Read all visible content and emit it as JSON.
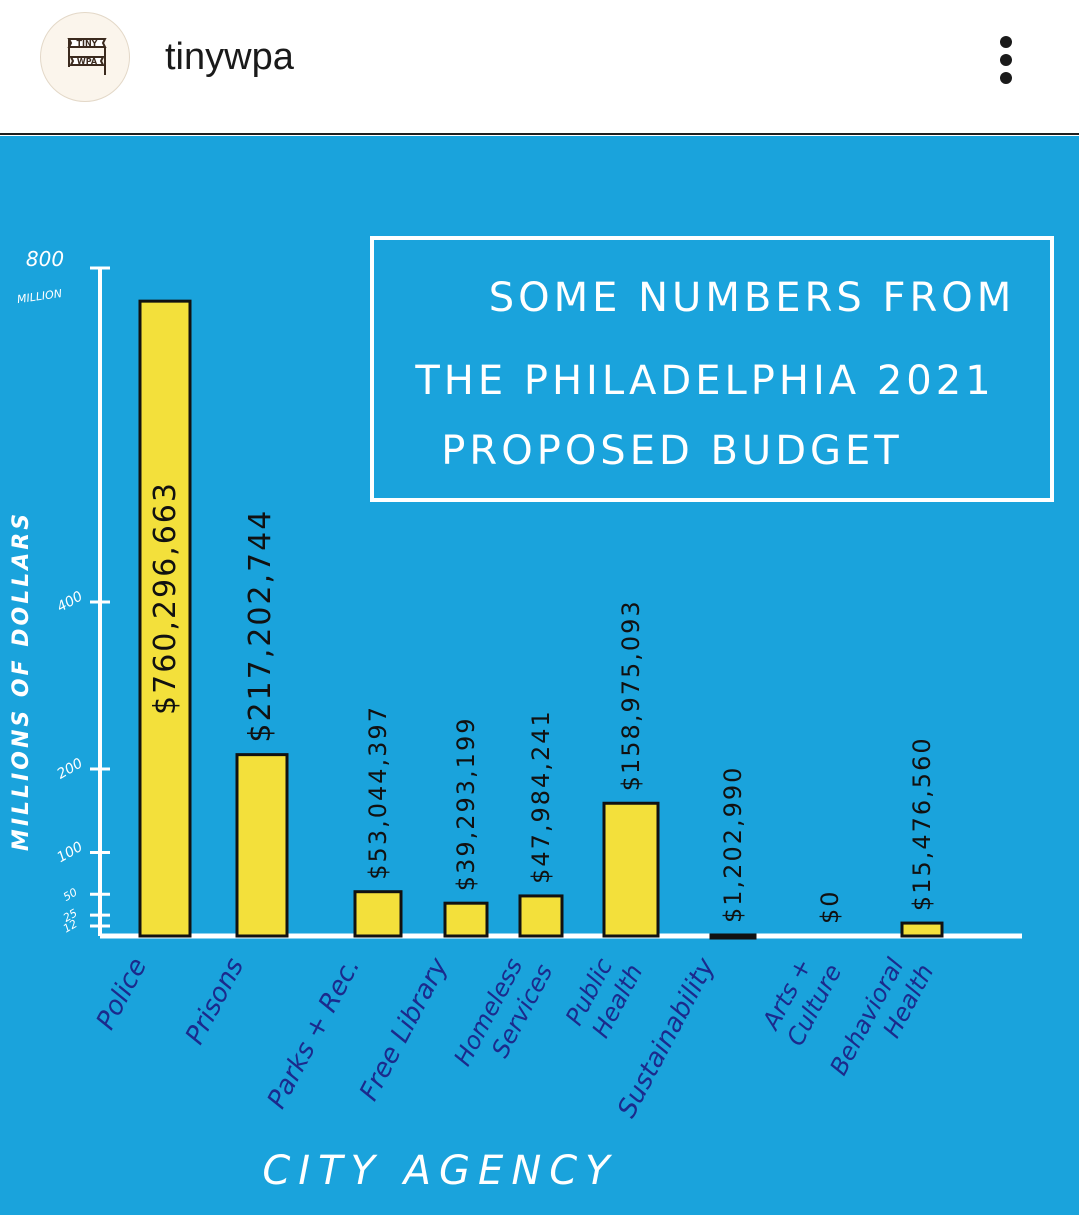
{
  "header": {
    "username": "tinywpa",
    "avatar_text": [
      "TINY",
      "WPA"
    ],
    "menu_icon": "more-vertical-icon"
  },
  "colors": {
    "background": "#1aa3dc",
    "bar": "#f3e03b",
    "bar_stroke": "#111111",
    "axis": "#ffffff",
    "label_text": "#1b2a8c"
  },
  "chart_data": {
    "type": "bar",
    "title": [
      "SOME NUMBERS FROM",
      "THE PHILADELPHIA 2021",
      "PROPOSED BUDGET"
    ],
    "xlabel": "CITY AGENCY",
    "ylabel": "MILLIONS OF DOLLARS",
    "ymax_label": "MILLION",
    "y_ticks": [
      {
        "value": 12,
        "label": "12"
      },
      {
        "value": 25,
        "label": "25"
      },
      {
        "value": 50,
        "label": "50"
      },
      {
        "value": 100,
        "label": "100"
      },
      {
        "value": 200,
        "label": "200"
      },
      {
        "value": 400,
        "label": "400"
      },
      {
        "value": 800,
        "label": "800"
      }
    ],
    "categories": [
      [
        "Police"
      ],
      [
        "Prisons"
      ],
      [
        "Parks + Rec."
      ],
      [
        "Free Library"
      ],
      [
        "Homeless",
        "Services"
      ],
      [
        "Public",
        "Health"
      ],
      [
        "Sustainability"
      ],
      [
        "Arts +",
        "Culture"
      ],
      [
        "Behavioral",
        "Health"
      ]
    ],
    "values": [
      760296663,
      217202744,
      53044397,
      39293199,
      47984241,
      158975093,
      1202990,
      0,
      15476560
    ],
    "value_labels": [
      "$760,296,663",
      "$217,202,744",
      "$53,044,397",
      "$39,293,199",
      "$47,984,241",
      "$158,975,093",
      "$1,202,990",
      "$0",
      "$15,476,560"
    ]
  }
}
